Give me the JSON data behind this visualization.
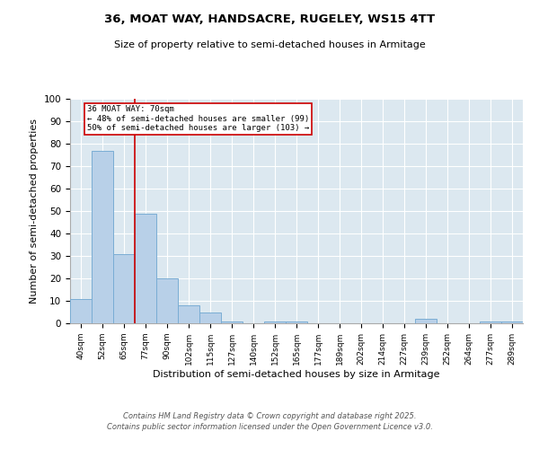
{
  "title1": "36, MOAT WAY, HANDSACRE, RUGELEY, WS15 4TT",
  "title2": "Size of property relative to semi-detached houses in Armitage",
  "xlabel": "Distribution of semi-detached houses by size in Armitage",
  "ylabel": "Number of semi-detached properties",
  "categories": [
    "40sqm",
    "52sqm",
    "65sqm",
    "77sqm",
    "90sqm",
    "102sqm",
    "115sqm",
    "127sqm",
    "140sqm",
    "152sqm",
    "165sqm",
    "177sqm",
    "189sqm",
    "202sqm",
    "214sqm",
    "227sqm",
    "239sqm",
    "252sqm",
    "264sqm",
    "277sqm",
    "289sqm"
  ],
  "values": [
    11,
    77,
    31,
    49,
    20,
    8,
    5,
    1,
    0,
    1,
    1,
    0,
    0,
    0,
    0,
    0,
    2,
    0,
    0,
    1,
    1
  ],
  "bar_color": "#b8d0e8",
  "bar_edge_color": "#7aadd4",
  "property_line_x": 2.5,
  "annotation_title": "36 MOAT WAY: 70sqm",
  "annotation_line1": "← 48% of semi-detached houses are smaller (99)",
  "annotation_line2": "50% of semi-detached houses are larger (103) →",
  "annotation_box_color": "#cc0000",
  "ylim": [
    0,
    100
  ],
  "yticks": [
    0,
    10,
    20,
    30,
    40,
    50,
    60,
    70,
    80,
    90,
    100
  ],
  "background_color": "#dce8f0",
  "footer1": "Contains HM Land Registry data © Crown copyright and database right 2025.",
  "footer2": "Contains public sector information licensed under the Open Government Licence v3.0."
}
